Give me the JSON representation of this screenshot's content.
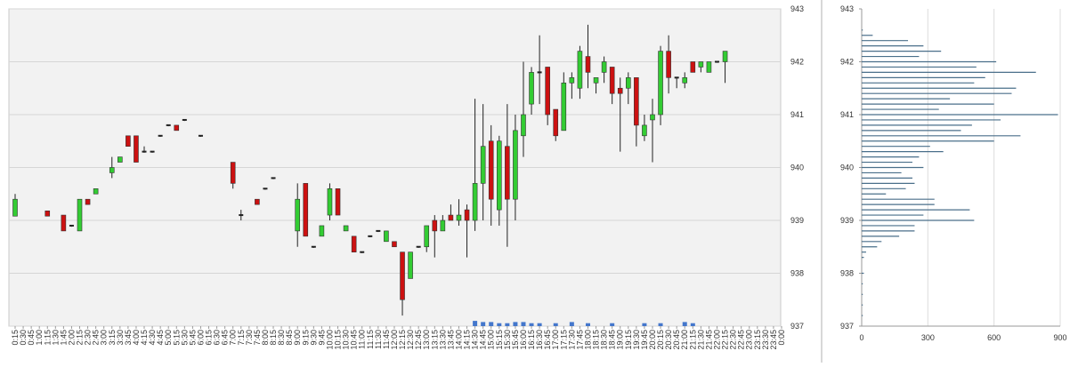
{
  "chart_data": [
    {
      "type": "candlestick",
      "ylim": [
        937,
        943
      ],
      "y_ticks": [
        "937",
        "938",
        "939",
        "940",
        "941",
        "942",
        "943"
      ],
      "colors": {
        "up": "#33cc33",
        "down": "#cc1111",
        "volume": "#4477cc",
        "plot_bg": "#f2f2f2",
        "grid": "#d6d6d6"
      },
      "x_tick_labels": [
        "0:15",
        "0:30",
        "0:45",
        "1:00",
        "1:15",
        "1:30",
        "1:45",
        "2:00",
        "2:15",
        "2:30",
        "2:45",
        "3:00",
        "3:15",
        "3:30",
        "3:45",
        "4:00",
        "4:15",
        "4:30",
        "4:45",
        "5:00",
        "5:15",
        "5:30",
        "5:45",
        "6:00",
        "6:15",
        "6:30",
        "6:45",
        "7:00",
        "7:15",
        "7:30",
        "7:45",
        "8:00",
        "8:15",
        "8:30",
        "8:45",
        "9:00",
        "9:15",
        "9:30",
        "9:45",
        "10:00",
        "10:15",
        "10:30",
        "10:45",
        "11:00",
        "11:15",
        "11:30",
        "11:45",
        "12:00",
        "12:15",
        "12:30",
        "12:45",
        "13:00",
        "13:15",
        "13:30",
        "13:45",
        "14:00",
        "14:15",
        "14:30",
        "14:45",
        "15:00",
        "15:15",
        "15:30",
        "15:45",
        "16:00",
        "16:15",
        "16:30",
        "16:45",
        "17:00",
        "17:15",
        "17:30",
        "17:45",
        "18:00",
        "18:15",
        "18:30",
        "18:45",
        "19:00",
        "19:15",
        "19:30",
        "19:45",
        "20:00",
        "20:15",
        "20:30",
        "20:45",
        "21:00",
        "21:15",
        "21:30",
        "21:45",
        "22:00",
        "22:15",
        "22:30",
        "22:45",
        "23:00",
        "23:15",
        "23:30",
        "23:45",
        "0:00"
      ],
      "candles": [
        {
          "x": "0:15",
          "o": 939.08,
          "h": 939.5,
          "l": 939.08,
          "c": 939.4
        },
        {
          "x": "1:15",
          "o": 939.18,
          "h": 939.18,
          "l": 939.08,
          "c": 939.08
        },
        {
          "x": "1:45",
          "o": 939.1,
          "h": 939.1,
          "l": 938.8,
          "c": 938.8
        },
        {
          "x": "2:00",
          "o": 938.9,
          "h": 938.9,
          "l": 938.88,
          "c": 938.88
        },
        {
          "x": "2:15",
          "o": 938.8,
          "h": 939.4,
          "l": 938.8,
          "c": 939.4
        },
        {
          "x": "2:30",
          "o": 939.4,
          "h": 939.4,
          "l": 939.3,
          "c": 939.3
        },
        {
          "x": "2:45",
          "o": 939.5,
          "h": 939.6,
          "l": 939.5,
          "c": 939.6
        },
        {
          "x": "3:15",
          "o": 939.9,
          "h": 940.2,
          "l": 939.8,
          "c": 940.0
        },
        {
          "x": "3:30",
          "o": 940.1,
          "h": 940.2,
          "l": 940.1,
          "c": 940.2
        },
        {
          "x": "3:45",
          "o": 940.6,
          "h": 940.6,
          "l": 940.4,
          "c": 940.4
        },
        {
          "x": "4:00",
          "o": 940.6,
          "h": 940.6,
          "l": 940.1,
          "c": 940.1
        },
        {
          "x": "4:15",
          "o": 940.3,
          "h": 940.4,
          "l": 940.28,
          "c": 940.3
        },
        {
          "x": "4:30",
          "o": 940.3,
          "h": 940.3,
          "l": 940.28,
          "c": 940.3
        },
        {
          "x": "4:45",
          "o": 940.6,
          "h": 940.6,
          "l": 940.58,
          "c": 940.6
        },
        {
          "x": "5:00",
          "o": 940.8,
          "h": 940.8,
          "l": 940.78,
          "c": 940.8
        },
        {
          "x": "5:15",
          "o": 940.8,
          "h": 940.8,
          "l": 940.7,
          "c": 940.7
        },
        {
          "x": "5:30",
          "o": 940.9,
          "h": 940.9,
          "l": 940.88,
          "c": 940.9
        },
        {
          "x": "6:00",
          "o": 940.6,
          "h": 940.6,
          "l": 940.58,
          "c": 940.6
        },
        {
          "x": "7:00",
          "o": 940.1,
          "h": 940.1,
          "l": 939.6,
          "c": 939.7
        },
        {
          "x": "7:15",
          "o": 939.1,
          "h": 939.2,
          "l": 939.0,
          "c": 939.1
        },
        {
          "x": "7:45",
          "o": 939.4,
          "h": 939.4,
          "l": 939.3,
          "c": 939.3
        },
        {
          "x": "8:00",
          "o": 939.6,
          "h": 939.6,
          "l": 939.58,
          "c": 939.6
        },
        {
          "x": "8:15",
          "o": 939.8,
          "h": 939.8,
          "l": 939.78,
          "c": 939.8
        },
        {
          "x": "9:00",
          "o": 938.8,
          "h": 939.7,
          "l": 938.5,
          "c": 939.4
        },
        {
          "x": "9:15",
          "o": 939.7,
          "h": 939.7,
          "l": 938.7,
          "c": 938.7
        },
        {
          "x": "9:30",
          "o": 938.5,
          "h": 938.5,
          "l": 938.48,
          "c": 938.5
        },
        {
          "x": "9:45",
          "o": 938.7,
          "h": 938.9,
          "l": 938.7,
          "c": 938.9
        },
        {
          "x": "10:00",
          "o": 939.1,
          "h": 939.7,
          "l": 939.0,
          "c": 939.6
        },
        {
          "x": "10:15",
          "o": 939.6,
          "h": 939.6,
          "l": 939.1,
          "c": 939.1
        },
        {
          "x": "10:30",
          "o": 938.8,
          "h": 938.9,
          "l": 938.8,
          "c": 938.9
        },
        {
          "x": "10:45",
          "o": 938.7,
          "h": 938.7,
          "l": 938.4,
          "c": 938.4
        },
        {
          "x": "11:00",
          "o": 938.4,
          "h": 938.4,
          "l": 938.38,
          "c": 938.4
        },
        {
          "x": "11:15",
          "o": 938.7,
          "h": 938.7,
          "l": 938.68,
          "c": 938.7
        },
        {
          "x": "11:30",
          "o": 938.8,
          "h": 938.8,
          "l": 938.78,
          "c": 938.8
        },
        {
          "x": "11:45",
          "o": 938.6,
          "h": 938.8,
          "l": 938.6,
          "c": 938.8
        },
        {
          "x": "12:00",
          "o": 938.6,
          "h": 938.6,
          "l": 938.5,
          "c": 938.5
        },
        {
          "x": "12:15",
          "o": 938.4,
          "h": 938.4,
          "l": 937.2,
          "c": 937.5
        },
        {
          "x": "12:30",
          "o": 937.9,
          "h": 938.4,
          "l": 937.9,
          "c": 938.4
        },
        {
          "x": "12:45",
          "o": 938.5,
          "h": 938.5,
          "l": 938.48,
          "c": 938.5
        },
        {
          "x": "13:00",
          "o": 938.5,
          "h": 938.9,
          "l": 938.4,
          "c": 938.9
        },
        {
          "x": "13:15",
          "o": 939.0,
          "h": 939.1,
          "l": 938.3,
          "c": 938.8
        },
        {
          "x": "13:30",
          "o": 938.8,
          "h": 939.1,
          "l": 938.8,
          "c": 939.0
        },
        {
          "x": "13:45",
          "o": 939.1,
          "h": 939.3,
          "l": 939.0,
          "c": 939.0
        },
        {
          "x": "14:00",
          "o": 939.0,
          "h": 939.4,
          "l": 938.9,
          "c": 939.1
        },
        {
          "x": "14:15",
          "o": 939.2,
          "h": 939.3,
          "l": 938.3,
          "c": 939.0
        },
        {
          "x": "14:30",
          "o": 939.0,
          "h": 941.3,
          "l": 938.8,
          "c": 939.7
        },
        {
          "x": "14:45",
          "o": 939.7,
          "h": 941.2,
          "l": 939.0,
          "c": 940.4
        },
        {
          "x": "15:00",
          "o": 940.5,
          "h": 940.8,
          "l": 938.9,
          "c": 939.4
        },
        {
          "x": "15:15",
          "o": 939.2,
          "h": 940.6,
          "l": 938.9,
          "c": 940.5
        },
        {
          "x": "15:30",
          "o": 940.4,
          "h": 941.2,
          "l": 938.5,
          "c": 939.4
        },
        {
          "x": "15:45",
          "o": 939.4,
          "h": 941.0,
          "l": 939.0,
          "c": 940.7
        },
        {
          "x": "16:00",
          "o": 940.6,
          "h": 942.0,
          "l": 940.2,
          "c": 941.0
        },
        {
          "x": "16:15",
          "o": 941.2,
          "h": 941.9,
          "l": 941.0,
          "c": 941.8
        },
        {
          "x": "16:30",
          "o": 941.8,
          "h": 942.5,
          "l": 941.2,
          "c": 941.8
        },
        {
          "x": "16:45",
          "o": 941.9,
          "h": 941.9,
          "l": 940.8,
          "c": 941.0
        },
        {
          "x": "17:00",
          "o": 941.1,
          "h": 941.1,
          "l": 940.5,
          "c": 940.6
        },
        {
          "x": "17:15",
          "o": 940.7,
          "h": 941.8,
          "l": 940.7,
          "c": 941.6
        },
        {
          "x": "17:30",
          "o": 941.6,
          "h": 941.8,
          "l": 941.3,
          "c": 941.7
        },
        {
          "x": "17:45",
          "o": 941.5,
          "h": 942.3,
          "l": 941.3,
          "c": 942.2
        },
        {
          "x": "18:00",
          "o": 942.1,
          "h": 942.7,
          "l": 941.5,
          "c": 941.8
        },
        {
          "x": "18:15",
          "o": 941.6,
          "h": 941.7,
          "l": 941.4,
          "c": 941.7
        },
        {
          "x": "18:30",
          "o": 941.8,
          "h": 942.1,
          "l": 941.6,
          "c": 942.0
        },
        {
          "x": "18:45",
          "o": 941.9,
          "h": 941.9,
          "l": 941.2,
          "c": 941.4
        },
        {
          "x": "19:00",
          "o": 941.5,
          "h": 941.7,
          "l": 940.3,
          "c": 941.4
        },
        {
          "x": "19:15",
          "o": 941.5,
          "h": 941.8,
          "l": 941.2,
          "c": 941.7
        },
        {
          "x": "19:30",
          "o": 941.7,
          "h": 941.7,
          "l": 940.4,
          "c": 940.8
        },
        {
          "x": "19:45",
          "o": 940.6,
          "h": 941.0,
          "l": 940.5,
          "c": 940.8
        },
        {
          "x": "20:00",
          "o": 940.9,
          "h": 941.3,
          "l": 940.1,
          "c": 941.0
        },
        {
          "x": "20:15",
          "o": 941.0,
          "h": 942.3,
          "l": 940.8,
          "c": 942.2
        },
        {
          "x": "20:30",
          "o": 942.2,
          "h": 942.5,
          "l": 941.4,
          "c": 941.7
        },
        {
          "x": "20:45",
          "o": 941.7,
          "h": 941.7,
          "l": 941.5,
          "c": 941.7
        },
        {
          "x": "21:00",
          "o": 941.6,
          "h": 941.8,
          "l": 941.5,
          "c": 941.7
        },
        {
          "x": "21:15",
          "o": 942.0,
          "h": 942.0,
          "l": 941.8,
          "c": 941.8
        },
        {
          "x": "21:30",
          "o": 941.9,
          "h": 942.0,
          "l": 941.8,
          "c": 942.0
        },
        {
          "x": "21:45",
          "o": 941.8,
          "h": 942.0,
          "l": 941.8,
          "c": 942.0
        },
        {
          "x": "22:00",
          "o": 942.0,
          "h": 942.0,
          "l": 941.98,
          "c": 942.0
        },
        {
          "x": "22:15",
          "o": 942.0,
          "h": 942.2,
          "l": 941.6,
          "c": 942.2
        }
      ],
      "volume_markers": [
        {
          "x": "14:30",
          "v": 3
        },
        {
          "x": "14:45",
          "v": 2
        },
        {
          "x": "15:00",
          "v": 2
        },
        {
          "x": "15:15",
          "v": 1
        },
        {
          "x": "15:30",
          "v": 1
        },
        {
          "x": "15:45",
          "v": 2
        },
        {
          "x": "16:00",
          "v": 2
        },
        {
          "x": "16:15",
          "v": 1
        },
        {
          "x": "16:30",
          "v": 1
        },
        {
          "x": "17:00",
          "v": 1
        },
        {
          "x": "17:30",
          "v": 2
        },
        {
          "x": "18:00",
          "v": 1
        },
        {
          "x": "18:45",
          "v": 1
        },
        {
          "x": "19:45",
          "v": 1
        },
        {
          "x": "20:15",
          "v": 1
        },
        {
          "x": "21:00",
          "v": 2
        },
        {
          "x": "21:15",
          "v": 1
        }
      ]
    },
    {
      "type": "bar",
      "orientation": "horizontal",
      "title": "",
      "xlim": [
        0,
        900
      ],
      "x_ticks": [
        "0",
        "300",
        "600",
        "900"
      ],
      "ylim": [
        937,
        943
      ],
      "y_ticks": [
        "937",
        "938",
        "939",
        "940",
        "941",
        "942",
        "943"
      ],
      "bar_color": "#4a6f8a",
      "profile": [
        [
          942.6,
          5
        ],
        [
          942.5,
          50
        ],
        [
          942.4,
          210
        ],
        [
          942.3,
          280
        ],
        [
          942.2,
          360
        ],
        [
          942.1,
          260
        ],
        [
          942.0,
          610
        ],
        [
          941.9,
          520
        ],
        [
          941.8,
          790
        ],
        [
          941.7,
          560
        ],
        [
          941.6,
          510
        ],
        [
          941.5,
          700
        ],
        [
          941.4,
          680
        ],
        [
          941.3,
          400
        ],
        [
          941.2,
          600
        ],
        [
          941.1,
          350
        ],
        [
          941.0,
          890
        ],
        [
          940.9,
          630
        ],
        [
          940.8,
          500
        ],
        [
          940.7,
          450
        ],
        [
          940.6,
          720
        ],
        [
          940.5,
          600
        ],
        [
          940.4,
          310
        ],
        [
          940.3,
          370
        ],
        [
          940.2,
          260
        ],
        [
          940.1,
          230
        ],
        [
          940.0,
          280
        ],
        [
          939.9,
          180
        ],
        [
          939.8,
          230
        ],
        [
          939.7,
          240
        ],
        [
          939.6,
          200
        ],
        [
          939.5,
          110
        ],
        [
          939.4,
          330
        ],
        [
          939.3,
          330
        ],
        [
          939.2,
          490
        ],
        [
          939.1,
          280
        ],
        [
          939.0,
          510
        ],
        [
          938.9,
          240
        ],
        [
          938.8,
          240
        ],
        [
          938.7,
          170
        ],
        [
          938.6,
          90
        ],
        [
          938.5,
          70
        ],
        [
          938.4,
          20
        ],
        [
          938.3,
          10
        ],
        [
          938.0,
          10
        ],
        [
          937.8,
          5
        ],
        [
          937.6,
          5
        ],
        [
          937.4,
          5
        ],
        [
          937.2,
          5
        ]
      ]
    }
  ]
}
